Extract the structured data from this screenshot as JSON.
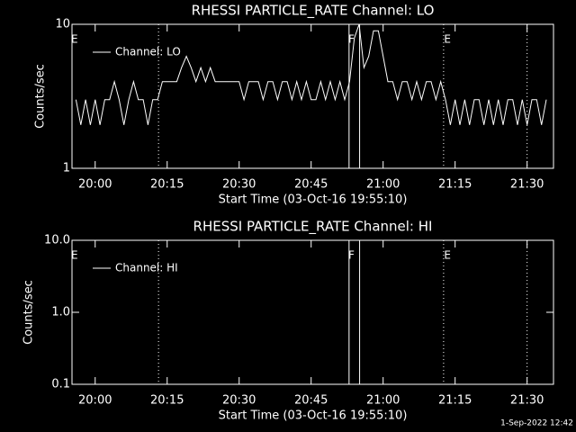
{
  "chart_data": [
    {
      "type": "line",
      "title": "RHESSI PARTICLE_RATE Channel: LO",
      "xlabel": "Start Time (03-Oct-16 19:55:10)",
      "ylabel": "Counts/sec",
      "log_y": true,
      "ylim": [
        1,
        10
      ],
      "yticks": [
        1,
        10
      ],
      "xlim": [
        1195.17,
        1295.5
      ],
      "xticks": [
        {
          "value": 1200,
          "label": "20:00"
        },
        {
          "value": 1215,
          "label": "20:15"
        },
        {
          "value": 1230,
          "label": "20:30"
        },
        {
          "value": 1245,
          "label": "20:45"
        },
        {
          "value": 1260,
          "label": "21:00"
        },
        {
          "value": 1275,
          "label": "21:15"
        },
        {
          "value": 1290,
          "label": "21:30"
        }
      ],
      "flags": [
        {
          "x": 1195.7,
          "label": "E"
        },
        {
          "x": 1253.4,
          "label": "F"
        },
        {
          "x": 1273.4,
          "label": "E"
        }
      ],
      "flag_lines": [
        {
          "x": 1213.2,
          "style": "dotted"
        },
        {
          "x": 1252.9,
          "style": "solid"
        },
        {
          "x": 1255.1,
          "style": "solid"
        },
        {
          "x": 1272.6,
          "style": "dotted"
        },
        {
          "x": 1290,
          "style": "dotted"
        }
      ],
      "series": [
        {
          "name": "Channel: LO",
          "color": "#ffffff",
          "x": [
            1196,
            1197,
            1198,
            1199,
            1200,
            1201,
            1202,
            1203,
            1204,
            1205,
            1206,
            1207,
            1208,
            1209,
            1210,
            1211,
            1212,
            1213,
            1214,
            1215,
            1216,
            1217,
            1218,
            1219,
            1220,
            1221,
            1222,
            1223,
            1224,
            1225,
            1226,
            1227,
            1228,
            1229,
            1230,
            1231,
            1232,
            1233,
            1234,
            1235,
            1236,
            1237,
            1238,
            1239,
            1240,
            1241,
            1242,
            1243,
            1244,
            1245,
            1246,
            1247,
            1248,
            1249,
            1250,
            1251,
            1252,
            1253,
            1254,
            1255,
            1256,
            1257,
            1258,
            1259,
            1260,
            1261,
            1262,
            1263,
            1264,
            1265,
            1266,
            1267,
            1268,
            1269,
            1270,
            1271,
            1272,
            1273,
            1274,
            1275,
            1276,
            1277,
            1278,
            1279,
            1280,
            1281,
            1282,
            1283,
            1284,
            1285,
            1286,
            1287,
            1288,
            1289,
            1290,
            1291,
            1292,
            1293,
            1294
          ],
          "values": [
            3,
            2,
            3,
            2,
            3,
            2,
            3,
            3,
            4,
            3,
            2,
            3,
            4,
            3,
            3,
            2,
            3,
            3,
            4,
            4,
            4,
            4,
            5,
            6,
            5,
            4,
            5,
            4,
            5,
            4,
            4,
            4,
            4,
            4,
            4,
            3,
            4,
            4,
            4,
            3,
            4,
            4,
            3,
            4,
            4,
            3,
            4,
            3,
            4,
            3,
            3,
            4,
            3,
            4,
            3,
            4,
            3,
            4,
            8,
            10,
            5,
            6,
            9,
            9,
            6,
            4,
            4,
            3,
            4,
            4,
            3,
            4,
            3,
            4,
            4,
            3,
            4,
            3,
            2,
            3,
            2,
            3,
            2,
            3,
            3,
            2,
            3,
            2,
            3,
            2,
            3,
            3,
            2,
            3,
            2,
            3,
            3,
            2,
            3
          ]
        }
      ]
    },
    {
      "type": "line",
      "title": "RHESSI PARTICLE_RATE Channel: HI",
      "xlabel": "Start Time (03-Oct-16 19:55:10)",
      "ylabel": "Counts/sec",
      "log_y": true,
      "ylim": [
        0.1,
        10
      ],
      "yticks": [
        0.1,
        {
          "value": 1,
          "label": "1.0"
        },
        {
          "value": 10,
          "label": "10.0"
        }
      ],
      "xlim": [
        1195.17,
        1295.5
      ],
      "xticks": [
        {
          "value": 1200,
          "label": "20:00"
        },
        {
          "value": 1215,
          "label": "20:15"
        },
        {
          "value": 1230,
          "label": "20:30"
        },
        {
          "value": 1245,
          "label": "20:45"
        },
        {
          "value": 1260,
          "label": "21:00"
        },
        {
          "value": 1275,
          "label": "21:15"
        },
        {
          "value": 1290,
          "label": "21:30"
        }
      ],
      "flags": [
        {
          "x": 1195.7,
          "label": "E"
        },
        {
          "x": 1253.4,
          "label": "F"
        },
        {
          "x": 1273.4,
          "label": "E"
        }
      ],
      "flag_lines": [
        {
          "x": 1213.2,
          "style": "dotted"
        },
        {
          "x": 1252.9,
          "style": "solid"
        },
        {
          "x": 1255.1,
          "style": "solid"
        },
        {
          "x": 1272.6,
          "style": "dotted"
        },
        {
          "x": 1290,
          "style": "dotted"
        }
      ],
      "series": [
        {
          "name": "Channel: HI",
          "color": "#ffffff",
          "x": [],
          "values": []
        }
      ]
    }
  ],
  "footer": "1-Sep-2022 12:42"
}
